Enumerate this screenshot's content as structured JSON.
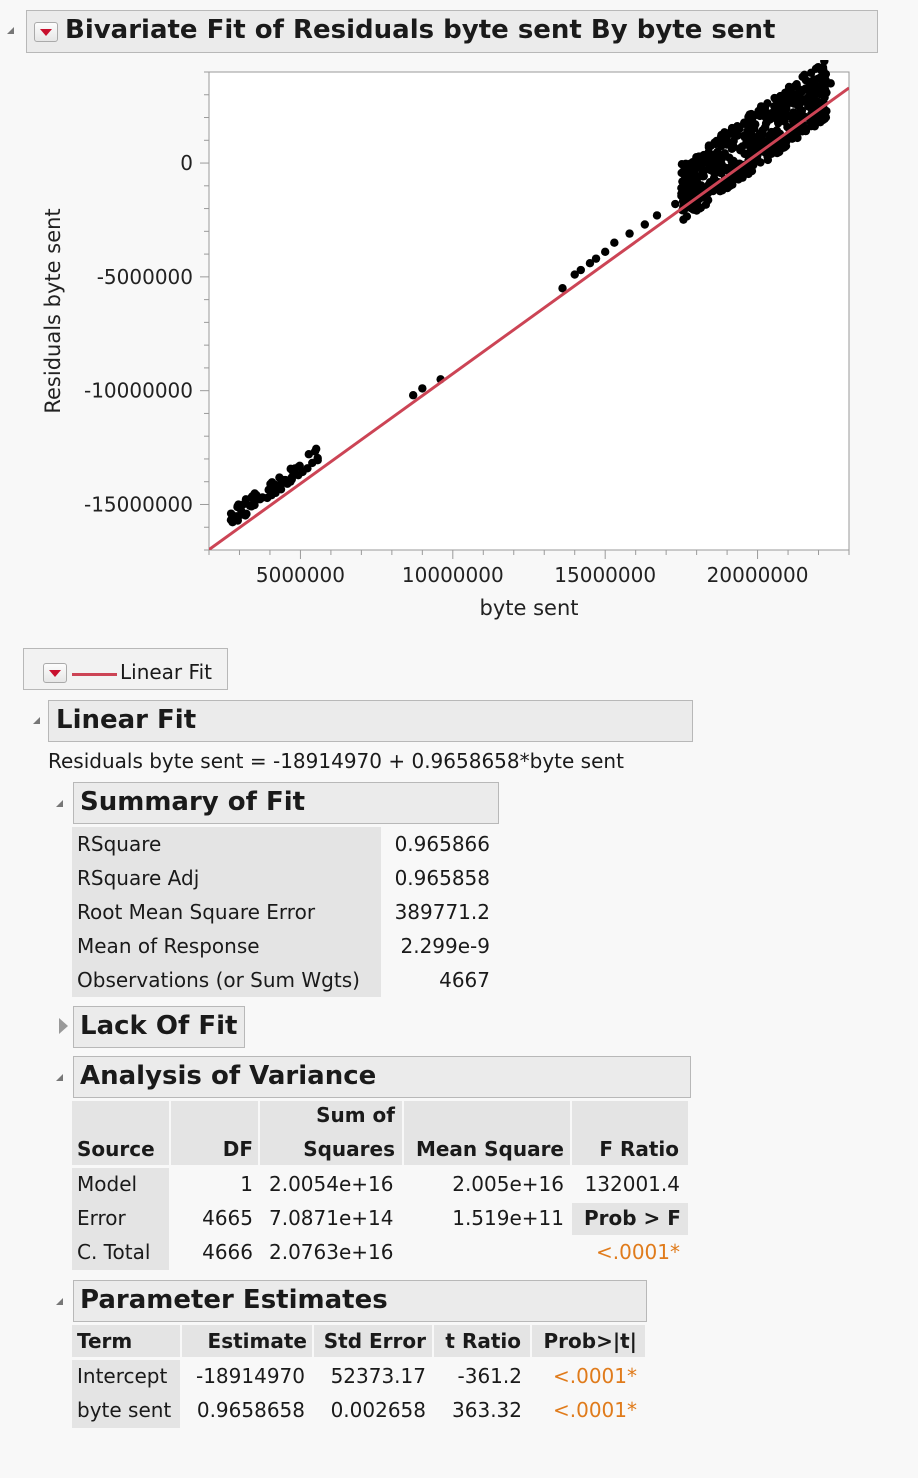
{
  "title": "Bivariate Fit of Residuals byte sent By byte sent",
  "chart_data": {
    "type": "scatter",
    "xlabel": "byte sent",
    "ylabel": "Residuals byte sent",
    "xlim": [
      2000000,
      23000000
    ],
    "ylim": [
      -17000000,
      4000000
    ],
    "xticks": [
      5000000,
      10000000,
      15000000,
      20000000
    ],
    "xtick_labels": [
      "5000000",
      "10000000",
      "15000000",
      "20000000"
    ],
    "yticks": [
      0,
      -5000000,
      -10000000,
      -15000000
    ],
    "ytick_labels": [
      "0",
      "-5000000",
      "-10000000",
      "-15000000"
    ],
    "fit_line": {
      "intercept": -18914970,
      "slope": 0.9658658,
      "color": "#cc4455"
    },
    "point_color": "#000000",
    "clusters": [
      {
        "x_range": [
          2700000,
          5700000
        ],
        "y_range": [
          -16200000,
          -13400000
        ]
      },
      {
        "x_range": [
          17500000,
          22300000
        ],
        "y_range": [
          -3000000,
          3200000
        ]
      }
    ],
    "points": [
      [
        8700000,
        -10200000
      ],
      [
        9000000,
        -9900000
      ],
      [
        9600000,
        -9500000
      ],
      [
        13600000,
        -5500000
      ],
      [
        14000000,
        -4900000
      ],
      [
        14200000,
        -4700000
      ],
      [
        14500000,
        -4400000
      ],
      [
        14700000,
        -4200000
      ],
      [
        15000000,
        -3900000
      ],
      [
        15300000,
        -3500000
      ],
      [
        15800000,
        -3100000
      ],
      [
        16300000,
        -2700000
      ],
      [
        16700000,
        -2300000
      ],
      [
        17300000,
        -1800000
      ],
      [
        17500000,
        -1100000
      ],
      [
        17800000,
        -1000000
      ],
      [
        22400000,
        3500000
      ],
      [
        22100000,
        3000000
      ]
    ]
  },
  "legend": {
    "label": "Linear Fit"
  },
  "linear_fit": {
    "title": "Linear Fit",
    "equation": "Residuals byte sent = -18914970 + 0.9658658*byte sent"
  },
  "summary_of_fit": {
    "title": "Summary of Fit",
    "rows": [
      {
        "label": "RSquare",
        "value": "0.965866"
      },
      {
        "label": "RSquare Adj",
        "value": "0.965858"
      },
      {
        "label": "Root Mean Square Error",
        "value": "389771.2"
      },
      {
        "label": "Mean of Response",
        "value": "2.299e-9"
      },
      {
        "label": "Observations (or Sum Wgts)",
        "value": "4667"
      }
    ]
  },
  "lack_of_fit": {
    "title": "Lack Of Fit"
  },
  "anova": {
    "title": "Analysis of Variance",
    "headers": {
      "source": "Source",
      "df": "DF",
      "ss1": "Sum of",
      "ss2": "Squares",
      "ms": "Mean Square",
      "f": "F Ratio"
    },
    "rows": [
      {
        "source": "Model",
        "df": "1",
        "ss": "2.0054e+16",
        "ms": "2.005e+16",
        "f": "132001.4"
      },
      {
        "source": "Error",
        "df": "4665",
        "ss": "7.0871e+14",
        "ms": "1.519e+11",
        "f": "Prob > F"
      },
      {
        "source": "C. Total",
        "df": "4666",
        "ss": "2.0763e+16",
        "ms": "",
        "f": "<.0001*"
      }
    ]
  },
  "parameter_estimates": {
    "title": "Parameter Estimates",
    "headers": [
      "Term",
      "Estimate",
      "Std Error",
      "t Ratio",
      "Prob>|t|"
    ],
    "rows": [
      {
        "term": "Intercept",
        "estimate": "-18914970",
        "std_error": "52373.17",
        "t_ratio": "-361.2",
        "prob": "<.0001*"
      },
      {
        "term": "byte sent",
        "estimate": "0.9658658",
        "std_error": "0.002658",
        "t_ratio": "363.32",
        "prob": "<.0001*"
      }
    ]
  }
}
